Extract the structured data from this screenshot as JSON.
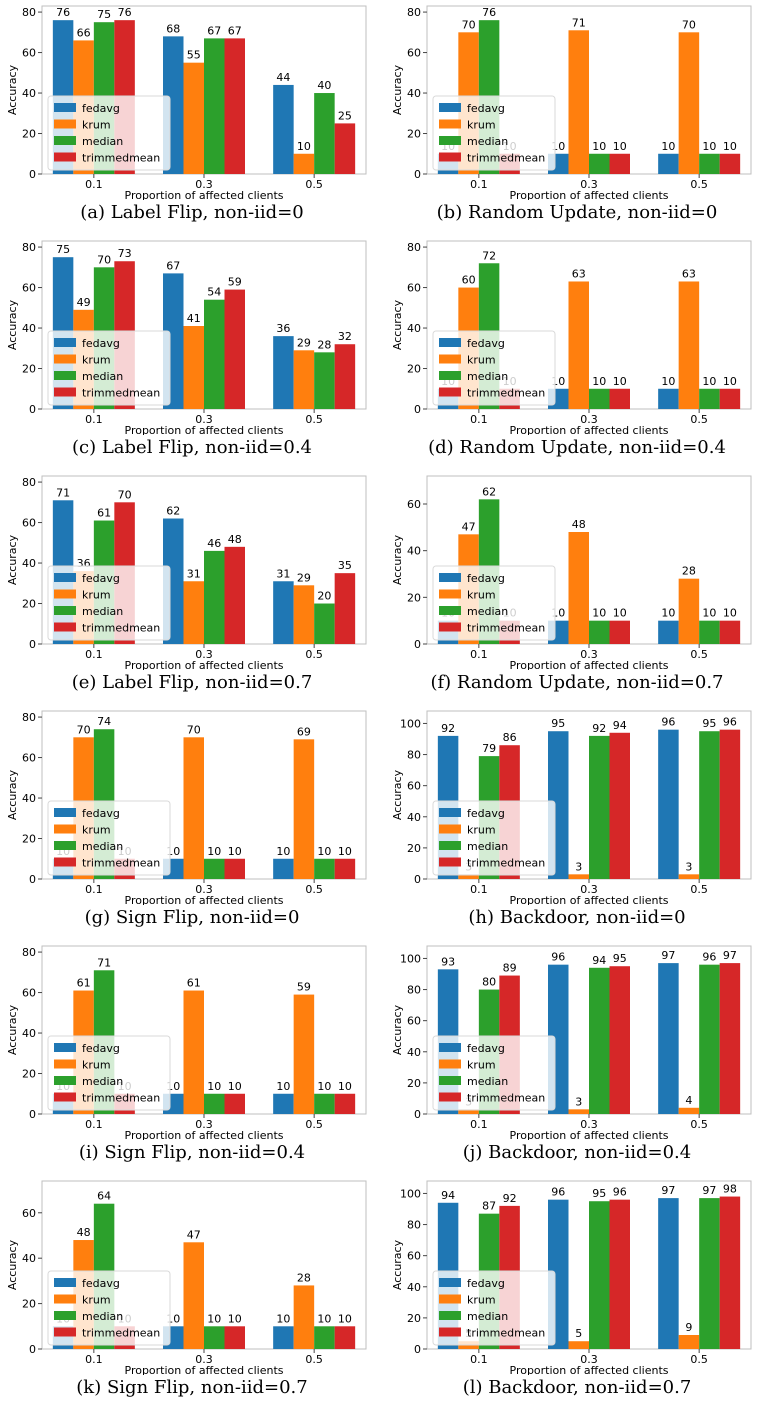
{
  "colors": {
    "fedavg": "#1f77b4",
    "krum": "#ff7f0e",
    "median": "#2ca02c",
    "trimmedmean": "#d62728"
  },
  "legend": [
    "fedavg",
    "krum",
    "median",
    "trimmedmean"
  ],
  "chart_data": [
    {
      "type": "bar",
      "caption": "(a) Label Flip, non-iid=0",
      "categories": [
        "0.1",
        "0.3",
        "0.5"
      ],
      "xlabel": "Proportion of affected clients",
      "ylabel": "Accuracy",
      "ylim": [
        0,
        83
      ],
      "yticks": [
        0,
        20,
        40,
        60,
        80
      ],
      "legend_position": "lower left",
      "series": [
        {
          "name": "fedavg",
          "values": [
            76,
            68,
            44
          ]
        },
        {
          "name": "krum",
          "values": [
            66,
            55,
            10
          ]
        },
        {
          "name": "median",
          "values": [
            75,
            67,
            40
          ]
        },
        {
          "name": "trimmedmean",
          "values": [
            76,
            67,
            25
          ]
        }
      ]
    },
    {
      "type": "bar",
      "caption": "(b) Random Update, non-iid=0",
      "categories": [
        "0.1",
        "0.3",
        "0.5"
      ],
      "xlabel": "Proportion of affected clients",
      "ylabel": "Accuracy",
      "ylim": [
        0,
        83
      ],
      "yticks": [
        0,
        20,
        40,
        60,
        80
      ],
      "legend_position": "lower left",
      "series": [
        {
          "name": "fedavg",
          "values": [
            10,
            10,
            10
          ]
        },
        {
          "name": "krum",
          "values": [
            70,
            71,
            70
          ]
        },
        {
          "name": "median",
          "values": [
            76,
            10,
            10
          ]
        },
        {
          "name": "trimmedmean",
          "values": [
            10,
            10,
            10
          ]
        }
      ]
    },
    {
      "type": "bar",
      "caption": "(c) Label Flip, non-iid=0.4",
      "categories": [
        "0.1",
        "0.3",
        "0.5"
      ],
      "xlabel": "Proportion of affected clients",
      "ylabel": "Accuracy",
      "ylim": [
        0,
        83
      ],
      "yticks": [
        0,
        20,
        40,
        60,
        80
      ],
      "legend_position": "lower left",
      "series": [
        {
          "name": "fedavg",
          "values": [
            75,
            67,
            36
          ]
        },
        {
          "name": "krum",
          "values": [
            49,
            41,
            29
          ]
        },
        {
          "name": "median",
          "values": [
            70,
            54,
            28
          ]
        },
        {
          "name": "trimmedmean",
          "values": [
            73,
            59,
            32
          ]
        }
      ]
    },
    {
      "type": "bar",
      "caption": "(d) Random Update, non-iid=0.4",
      "categories": [
        "0.1",
        "0.3",
        "0.5"
      ],
      "xlabel": "Proportion of affected clients",
      "ylabel": "Accuracy",
      "ylim": [
        0,
        83
      ],
      "yticks": [
        0,
        20,
        40,
        60,
        80
      ],
      "legend_position": "lower left",
      "series": [
        {
          "name": "fedavg",
          "values": [
            10,
            10,
            10
          ]
        },
        {
          "name": "krum",
          "values": [
            60,
            63,
            63
          ]
        },
        {
          "name": "median",
          "values": [
            72,
            10,
            10
          ]
        },
        {
          "name": "trimmedmean",
          "values": [
            10,
            10,
            10
          ]
        }
      ]
    },
    {
      "type": "bar",
      "caption": "(e) Label Flip, non-iid=0.7",
      "categories": [
        "0.1",
        "0.3",
        "0.5"
      ],
      "xlabel": "Proportion of affected clients",
      "ylabel": "Accuracy",
      "ylim": [
        0,
        83
      ],
      "yticks": [
        0,
        20,
        40,
        60,
        80
      ],
      "legend_position": "lower left",
      "series": [
        {
          "name": "fedavg",
          "values": [
            71,
            62,
            31
          ]
        },
        {
          "name": "krum",
          "values": [
            36,
            31,
            29
          ]
        },
        {
          "name": "median",
          "values": [
            61,
            46,
            20
          ]
        },
        {
          "name": "trimmedmean",
          "values": [
            70,
            48,
            35
          ]
        }
      ]
    },
    {
      "type": "bar",
      "caption": "(f) Random Update, non-iid=0.7",
      "categories": [
        "0.1",
        "0.3",
        "0.5"
      ],
      "xlabel": "Proportion of affected clients",
      "ylabel": "Accuracy",
      "ylim": [
        0,
        72
      ],
      "yticks": [
        0,
        20,
        40,
        60
      ],
      "legend_position": "lower left",
      "series": [
        {
          "name": "fedavg",
          "values": [
            10,
            10,
            10
          ]
        },
        {
          "name": "krum",
          "values": [
            47,
            48,
            28
          ]
        },
        {
          "name": "median",
          "values": [
            62,
            10,
            10
          ]
        },
        {
          "name": "trimmedmean",
          "values": [
            10,
            10,
            10
          ]
        }
      ]
    },
    {
      "type": "bar",
      "caption": "(g) Sign Flip, non-iid=0",
      "categories": [
        "0.1",
        "0.3",
        "0.5"
      ],
      "xlabel": "Proportion of affected clients",
      "ylabel": "Accuracy",
      "ylim": [
        0,
        83
      ],
      "yticks": [
        0,
        20,
        40,
        60,
        80
      ],
      "legend_position": "lower left",
      "series": [
        {
          "name": "fedavg",
          "values": [
            10,
            10,
            10
          ]
        },
        {
          "name": "krum",
          "values": [
            70,
            70,
            69
          ]
        },
        {
          "name": "median",
          "values": [
            74,
            10,
            10
          ]
        },
        {
          "name": "trimmedmean",
          "values": [
            10,
            10,
            10
          ]
        }
      ]
    },
    {
      "type": "bar",
      "caption": "(h) Backdoor, non-iid=0",
      "categories": [
        "0.1",
        "0.3",
        "0.5"
      ],
      "xlabel": "Proportion of affected clients",
      "ylabel": "Accuracy",
      "ylim": [
        0,
        108
      ],
      "yticks": [
        0,
        20,
        40,
        60,
        80,
        100
      ],
      "legend_position": "lower left",
      "series": [
        {
          "name": "fedavg",
          "values": [
            92,
            95,
            96
          ]
        },
        {
          "name": "krum",
          "values": [
            3,
            3,
            3
          ]
        },
        {
          "name": "median",
          "values": [
            79,
            92,
            95
          ]
        },
        {
          "name": "trimmedmean",
          "values": [
            86,
            94,
            96
          ]
        }
      ]
    },
    {
      "type": "bar",
      "caption": "(i) Sign Flip, non-iid=0.4",
      "categories": [
        "0.1",
        "0.3",
        "0.5"
      ],
      "xlabel": "Proportion of affected clients",
      "ylabel": "Accuracy",
      "ylim": [
        0,
        83
      ],
      "yticks": [
        0,
        20,
        40,
        60,
        80
      ],
      "legend_position": "lower left",
      "series": [
        {
          "name": "fedavg",
          "values": [
            10,
            10,
            10
          ]
        },
        {
          "name": "krum",
          "values": [
            61,
            61,
            59
          ]
        },
        {
          "name": "median",
          "values": [
            71,
            10,
            10
          ]
        },
        {
          "name": "trimmedmean",
          "values": [
            10,
            10,
            10
          ]
        }
      ]
    },
    {
      "type": "bar",
      "caption": "(j) Backdoor, non-iid=0.4",
      "categories": [
        "0.1",
        "0.3",
        "0.5"
      ],
      "xlabel": "Proportion of affected clients",
      "ylabel": "Accuracy",
      "ylim": [
        0,
        108
      ],
      "yticks": [
        0,
        20,
        40,
        60,
        80,
        100
      ],
      "legend_position": "lower left",
      "series": [
        {
          "name": "fedavg",
          "values": [
            93,
            96,
            97
          ]
        },
        {
          "name": "krum",
          "values": [
            3,
            3,
            4
          ]
        },
        {
          "name": "median",
          "values": [
            80,
            94,
            96
          ]
        },
        {
          "name": "trimmedmean",
          "values": [
            89,
            95,
            97
          ]
        }
      ]
    },
    {
      "type": "bar",
      "caption": "(k) Sign Flip, non-iid=0.7",
      "categories": [
        "0.1",
        "0.3",
        "0.5"
      ],
      "xlabel": "Proportion of affected clients",
      "ylabel": "Accuracy",
      "ylim": [
        0,
        74
      ],
      "yticks": [
        0,
        20,
        40,
        60
      ],
      "legend_position": "lower left",
      "series": [
        {
          "name": "fedavg",
          "values": [
            10,
            10,
            10
          ]
        },
        {
          "name": "krum",
          "values": [
            48,
            47,
            28
          ]
        },
        {
          "name": "median",
          "values": [
            64,
            10,
            10
          ]
        },
        {
          "name": "trimmedmean",
          "values": [
            10,
            10,
            10
          ]
        }
      ]
    },
    {
      "type": "bar",
      "caption": "(l) Backdoor, non-iid=0.7",
      "categories": [
        "0.1",
        "0.3",
        "0.5"
      ],
      "xlabel": "Proportion of affected clients",
      "ylabel": "Accuracy",
      "ylim": [
        0,
        108
      ],
      "yticks": [
        0,
        20,
        40,
        60,
        80,
        100
      ],
      "legend_position": "lower left",
      "series": [
        {
          "name": "fedavg",
          "values": [
            94,
            96,
            97
          ]
        },
        {
          "name": "krum",
          "values": [
            5,
            5,
            9
          ]
        },
        {
          "name": "median",
          "values": [
            87,
            95,
            97
          ]
        },
        {
          "name": "trimmedmean",
          "values": [
            92,
            96,
            98
          ]
        }
      ]
    }
  ]
}
